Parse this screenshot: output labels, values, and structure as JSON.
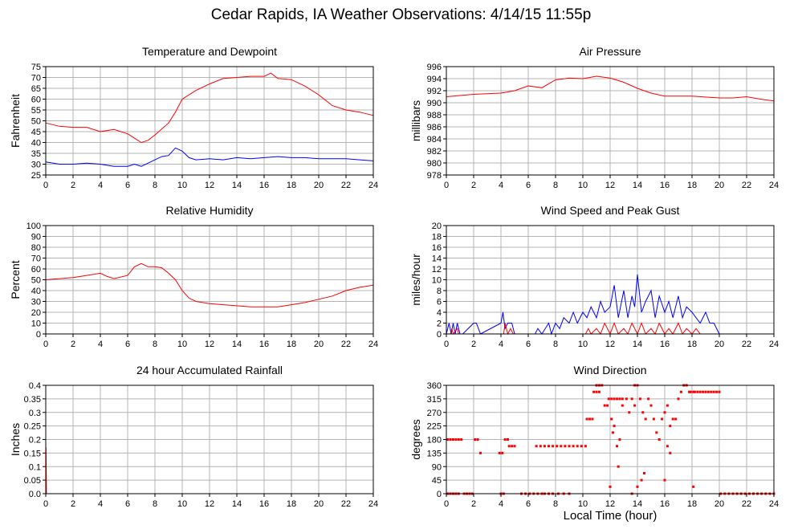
{
  "title": "Cedar Rapids, IA Weather Observations: 4/14/15 11:55p",
  "xlabel": "Local Time (hour)",
  "colors": {
    "primary": "#ff0000",
    "secondary": "#0000ff",
    "grid": "#b4b4b4"
  },
  "chart_data": [
    {
      "id": "temp",
      "type": "line",
      "title": "Temperature and Dewpoint",
      "ylabel": "Fahrenheit",
      "xlim": [
        0,
        24
      ],
      "ylim": [
        25,
        75
      ],
      "xticks": [
        0,
        2,
        4,
        6,
        8,
        10,
        12,
        14,
        16,
        18,
        20,
        22,
        24
      ],
      "yticks": [
        25,
        30,
        35,
        40,
        45,
        50,
        55,
        60,
        65,
        70,
        75
      ],
      "grid": true,
      "series": [
        {
          "color": "#ff0000",
          "x": [
            0,
            1,
            2,
            3,
            4,
            5,
            6,
            6.5,
            7,
            7.5,
            8,
            9,
            9.5,
            10,
            11,
            12,
            13,
            14,
            15,
            16,
            16.5,
            17,
            18,
            19,
            20,
            21,
            22,
            23,
            24
          ],
          "y": [
            49,
            47.5,
            47,
            47,
            45,
            46,
            44,
            42,
            40,
            41,
            43.5,
            49,
            54,
            60,
            64,
            67,
            69.5,
            70,
            70.5,
            70.5,
            72,
            69.5,
            69,
            66,
            62,
            57,
            55,
            54,
            52.5
          ]
        },
        {
          "color": "#0000ff",
          "x": [
            0,
            1,
            2,
            3,
            4,
            5,
            6,
            6.5,
            7,
            7.5,
            8,
            8.5,
            9,
            9.5,
            10,
            10.5,
            11,
            12,
            13,
            14,
            15,
            16,
            17,
            18,
            19,
            20,
            21,
            22,
            23,
            24
          ],
          "y": [
            31,
            30,
            30,
            30.5,
            30,
            29,
            29,
            30,
            29,
            30.5,
            32,
            33.5,
            34,
            37.5,
            36,
            33,
            32,
            32.5,
            32,
            33,
            32.5,
            33,
            33.5,
            33,
            33,
            32.5,
            32.5,
            32.5,
            32,
            31.5
          ]
        }
      ]
    },
    {
      "id": "pressure",
      "type": "line",
      "title": "Air Pressure",
      "ylabel": "millibars",
      "xlim": [
        0,
        24
      ],
      "ylim": [
        978,
        996
      ],
      "xticks": [
        0,
        2,
        4,
        6,
        8,
        10,
        12,
        14,
        16,
        18,
        20,
        22,
        24
      ],
      "yticks": [
        978,
        980,
        982,
        984,
        986,
        988,
        990,
        992,
        994,
        996
      ],
      "grid": true,
      "series": [
        {
          "color": "#ff0000",
          "x": [
            0,
            2,
            4,
            5,
            6,
            7,
            8,
            9,
            10,
            11,
            12,
            13,
            14,
            15,
            16,
            18,
            20,
            21,
            22,
            23,
            24
          ],
          "y": [
            991,
            991.4,
            991.6,
            992,
            992.8,
            992.5,
            993.8,
            994.1,
            994,
            994.4,
            994.1,
            993.4,
            992.4,
            991.6,
            991.1,
            991.1,
            990.8,
            990.8,
            991,
            990.6,
            990.3
          ]
        }
      ]
    },
    {
      "id": "rh",
      "type": "line",
      "title": "Relative Humidity",
      "ylabel": "Percent",
      "xlim": [
        0,
        24
      ],
      "ylim": [
        0,
        100
      ],
      "xticks": [
        0,
        2,
        4,
        6,
        8,
        10,
        12,
        14,
        16,
        18,
        20,
        22,
        24
      ],
      "yticks": [
        0,
        10,
        20,
        30,
        40,
        50,
        60,
        70,
        80,
        90,
        100
      ],
      "grid": true,
      "series": [
        {
          "color": "#ff0000",
          "x": [
            0,
            1,
            2,
            3,
            4,
            4.5,
            5,
            6,
            6.5,
            7,
            7.5,
            8,
            8.5,
            9,
            9.5,
            10,
            10.5,
            11,
            12,
            13,
            14,
            15,
            16,
            17,
            18,
            19,
            20,
            21,
            22,
            23,
            24
          ],
          "y": [
            50,
            51,
            52,
            54,
            56,
            53,
            51,
            54,
            62,
            65,
            62,
            62,
            61,
            56,
            50,
            40,
            33,
            30,
            28,
            27,
            26,
            25,
            25,
            25,
            27,
            29,
            32,
            35,
            40,
            43,
            45
          ]
        }
      ]
    },
    {
      "id": "wind",
      "type": "line",
      "title": "Wind Speed and Peak Gust",
      "ylabel": "miles/hour",
      "xlim": [
        0,
        24
      ],
      "ylim": [
        0,
        20
      ],
      "xticks": [
        0,
        2,
        4,
        6,
        8,
        10,
        12,
        14,
        16,
        18,
        20,
        22,
        24
      ],
      "yticks": [
        0,
        2,
        4,
        6,
        8,
        10,
        12,
        14,
        16,
        18,
        20
      ],
      "grid": true,
      "series": [
        {
          "color": "#0000ff",
          "x": [
            0,
            0.2,
            0.35,
            0.5,
            0.65,
            0.8,
            1.0,
            1.2,
            2,
            2.2,
            2.5,
            4,
            4.15,
            4.3,
            4.5,
            4.8,
            5,
            6.5,
            6.7,
            7,
            7.5,
            7.7,
            8,
            8.3,
            8.6,
            9,
            9.3,
            9.6,
            10,
            10.3,
            10.6,
            11,
            11.3,
            11.6,
            12,
            12.3,
            12.6,
            13,
            13.3,
            13.6,
            13.8,
            14,
            14.3,
            14.6,
            15,
            15.3,
            15.6,
            16,
            16.3,
            16.6,
            17,
            17.3,
            17.6,
            18,
            18.3,
            18.6,
            19,
            19.3,
            19.6,
            20,
            24
          ],
          "y": [
            0,
            2,
            0,
            2,
            0,
            2,
            0,
            0,
            2,
            2,
            0,
            2,
            4,
            1,
            2,
            2,
            0,
            0,
            1,
            0,
            2,
            0,
            2,
            1,
            3,
            2,
            4,
            2,
            4,
            3,
            5,
            3,
            6,
            4,
            5,
            9,
            3,
            8,
            3,
            7,
            5,
            11,
            4,
            6,
            8,
            3,
            7,
            4,
            6,
            3,
            7,
            3,
            5,
            4,
            3,
            2,
            4,
            2,
            2,
            0,
            0
          ]
        },
        {
          "color": "#ff0000",
          "x": [
            0,
            0.3,
            0.4,
            0.5,
            0.8,
            0.9,
            1.2,
            4.2,
            4.3,
            4.5,
            4.7,
            4.9,
            10.2,
            10.4,
            10.6,
            11,
            11.3,
            11.6,
            12,
            12.3,
            12.6,
            13,
            13.3,
            13.6,
            14,
            14.3,
            14.6,
            15,
            15.3,
            15.6,
            16,
            16.3,
            16.6,
            17,
            17.3,
            17.6,
            18,
            18.3,
            18.6,
            19,
            24
          ],
          "y": [
            0,
            0,
            1,
            0,
            1,
            0,
            0,
            0,
            2,
            0,
            1,
            0,
            0,
            1,
            0,
            1,
            0,
            2,
            0,
            2,
            0,
            1,
            0,
            2,
            0,
            2,
            0,
            1,
            0,
            2,
            0,
            1,
            0,
            2,
            0,
            1,
            0,
            1,
            0,
            0,
            0
          ]
        }
      ]
    },
    {
      "id": "rain",
      "type": "line",
      "title": "24 hour Accumulated Rainfall",
      "ylabel": "Inches",
      "xlim": [
        0,
        24
      ],
      "ylim": [
        0,
        0.4
      ],
      "xticks": [
        0,
        2,
        4,
        6,
        8,
        10,
        12,
        14,
        16,
        18,
        20,
        22,
        24
      ],
      "yticks": [
        0,
        0.05,
        0.1,
        0.15,
        0.2,
        0.25,
        0.3,
        0.35,
        0.4
      ],
      "ytickLabels": [
        "0.0",
        "0.05",
        "0.1",
        "0.15",
        "0.2",
        "0.25",
        "0.3",
        "0.35",
        "0.4"
      ],
      "grid": true,
      "series": [
        {
          "color": "#ff0000",
          "x": [
            0,
            0.02,
            0.05,
            24
          ],
          "y": [
            0.17,
            0.17,
            0,
            0
          ]
        }
      ]
    },
    {
      "id": "dir",
      "type": "scatter",
      "title": "Wind Direction",
      "ylabel": "degrees",
      "xlim": [
        0,
        24
      ],
      "ylim": [
        0,
        360
      ],
      "xticks": [
        0,
        2,
        4,
        6,
        8,
        10,
        12,
        14,
        16,
        18,
        20,
        22,
        24
      ],
      "yticks": [
        0,
        45,
        90,
        135,
        180,
        225,
        270,
        315,
        360
      ],
      "grid": true,
      "series": [
        {
          "color": "#ff0000",
          "x": [
            0.1,
            0.3,
            0.5,
            0.7,
            0.9,
            1.1,
            0.1,
            0.3,
            0.5,
            0.7,
            0.9,
            1.3,
            1.5,
            1.7,
            1.9,
            2.1,
            2.3,
            2.5,
            3.9,
            4.1,
            4.3,
            4.5,
            4.0,
            4.2,
            4.6,
            4.8,
            5.0,
            5.5,
            5.8,
            6.1,
            6.4,
            6.7,
            7.0,
            6.6,
            6.9,
            7.2,
            7.5,
            7.8,
            8.1,
            8.4,
            8.7,
            9.0,
            9.3,
            9.6,
            9.9,
            10.2,
            7.2,
            7.5,
            7.8,
            8.2,
            8.6,
            9.0,
            10.3,
            10.5,
            10.7,
            10.8,
            11.0,
            11.2,
            11.0,
            11.2,
            11.4,
            11.6,
            11.8,
            11.9,
            12.1,
            12.3,
            12.5,
            12.7,
            12.9,
            12.1,
            12.3,
            12.5,
            12.7,
            12.2,
            12.6,
            12.9,
            13.2,
            13.4,
            13.6,
            13.8,
            13.6,
            13.8,
            14.0,
            14.2,
            14.4,
            14.6,
            14.3,
            14.5,
            14.8,
            15.0,
            15.2,
            15.4,
            15.6,
            15.8,
            16.0,
            16.2,
            16.4,
            16.6,
            16.8,
            16.2,
            16.4,
            17.0,
            17.2,
            17.4,
            17.6,
            17.8,
            17.9,
            18.1,
            18.2,
            18.4,
            18.6,
            18.8,
            19.0,
            19.2,
            19.4,
            19.6,
            19.8,
            20.0,
            20.1,
            20.4,
            20.7,
            21.0,
            21.3,
            21.6,
            21.9,
            22.2,
            22.5,
            22.8,
            23.1,
            23.4,
            23.7,
            24.0,
            12.0,
            14.0,
            16.0,
            18.1
          ],
          "y": [
            180,
            180,
            180,
            180,
            180,
            180,
            0,
            0,
            0,
            0,
            0,
            0,
            0,
            0,
            0,
            180,
            180,
            135,
            135,
            135,
            180,
            180,
            0,
            0,
            158,
            158,
            158,
            0,
            0,
            0,
            0,
            0,
            0,
            158,
            158,
            158,
            158,
            158,
            158,
            158,
            158,
            158,
            158,
            158,
            158,
            158,
            0,
            0,
            0,
            0,
            0,
            0,
            248,
            248,
            248,
            338,
            338,
            338,
            360,
            360,
            360,
            293,
            293,
            315,
            315,
            315,
            315,
            315,
            315,
            248,
            225,
            158,
            180,
            203,
            90,
            293,
            315,
            270,
            315,
            293,
            0,
            360,
            360,
            315,
            270,
            248,
            45,
            68,
            315,
            293,
            248,
            203,
            180,
            248,
            270,
            293,
            225,
            248,
            248,
            158,
            135,
            315,
            338,
            360,
            360,
            338,
            338,
            338,
            338,
            338,
            338,
            338,
            338,
            338,
            338,
            338,
            338,
            338,
            0,
            0,
            0,
            0,
            0,
            0,
            0,
            0,
            0,
            0,
            0,
            0,
            0,
            0,
            23,
            23,
            45,
            23
          ]
        }
      ]
    }
  ]
}
